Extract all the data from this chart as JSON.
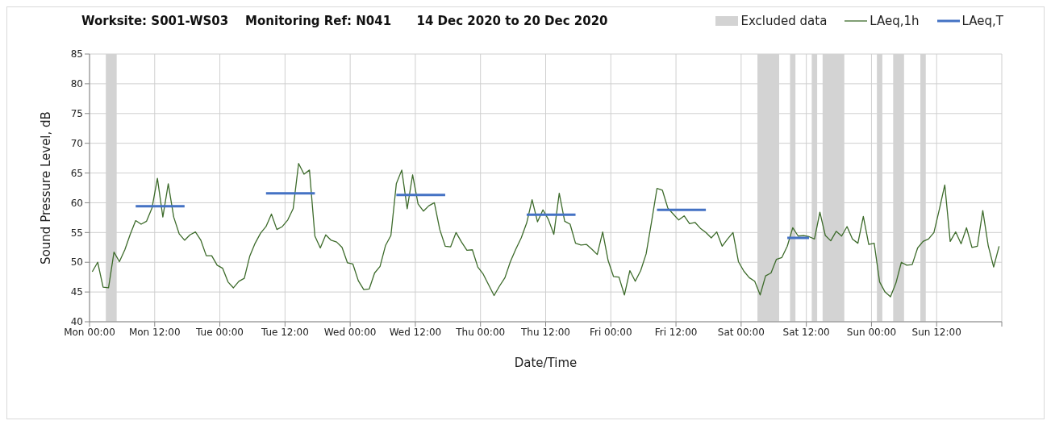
{
  "chart_data": {
    "type": "line",
    "title": "Worksite: S001-WS03    Monitoring Ref: N041      14 Dec 2020 to 20 Dec 2020",
    "xlabel": "Date/Time",
    "ylabel": "Sound Pressure Level, dB",
    "xlim": [
      "2020-12-14T00:00",
      "2020-12-21T00:00"
    ],
    "xticks": [
      {
        "value": "2020-12-14T00:00",
        "label": "Mon 00:00"
      },
      {
        "value": "2020-12-14T12:00",
        "label": "Mon 12:00"
      },
      {
        "value": "2020-12-15T00:00",
        "label": "Tue 00:00"
      },
      {
        "value": "2020-12-15T12:00",
        "label": "Tue 12:00"
      },
      {
        "value": "2020-12-16T00:00",
        "label": "Wed 00:00"
      },
      {
        "value": "2020-12-16T12:00",
        "label": "Wed 12:00"
      },
      {
        "value": "2020-12-17T00:00",
        "label": "Thu 00:00"
      },
      {
        "value": "2020-12-17T12:00",
        "label": "Thu 12:00"
      },
      {
        "value": "2020-12-18T00:00",
        "label": "Fri 00:00"
      },
      {
        "value": "2020-12-18T12:00",
        "label": "Fri 12:00"
      },
      {
        "value": "2020-12-19T00:00",
        "label": "Sat 00:00"
      },
      {
        "value": "2020-12-19T12:00",
        "label": "Sat 12:00"
      },
      {
        "value": "2020-12-20T00:00",
        "label": "Sun 00:00"
      },
      {
        "value": "2020-12-20T12:00",
        "label": "Sun 12:00"
      },
      {
        "value": "2020-12-21T00:00",
        "label": null
      }
    ],
    "ylim": [
      40,
      85
    ],
    "yticks": [
      40,
      45,
      50,
      55,
      60,
      65,
      70,
      75,
      80,
      85
    ],
    "grid": true,
    "legend": "top right",
    "marker": "none",
    "series": [
      {
        "name": "LAeq,1h",
        "color": "#3d6b2b",
        "x": [
          "2020-12-14T00:30",
          "2020-12-14T01:30",
          "2020-12-14T02:30",
          "2020-12-14T03:30",
          "2020-12-14T04:30",
          "2020-12-14T05:30",
          "2020-12-14T06:30",
          "2020-12-14T07:30",
          "2020-12-14T08:30",
          "2020-12-14T09:30",
          "2020-12-14T10:30",
          "2020-12-14T11:30",
          "2020-12-14T12:30",
          "2020-12-14T13:30",
          "2020-12-14T14:30",
          "2020-12-14T15:30",
          "2020-12-14T16:30",
          "2020-12-14T17:30",
          "2020-12-14T18:30",
          "2020-12-14T19:30",
          "2020-12-14T20:30",
          "2020-12-14T21:30",
          "2020-12-14T22:30",
          "2020-12-14T23:30",
          "2020-12-15T00:30",
          "2020-12-15T01:30",
          "2020-12-15T02:30",
          "2020-12-15T03:30",
          "2020-12-15T04:30",
          "2020-12-15T05:30",
          "2020-12-15T06:30",
          "2020-12-15T07:30",
          "2020-12-15T08:30",
          "2020-12-15T09:30",
          "2020-12-15T10:30",
          "2020-12-15T11:30",
          "2020-12-15T12:30",
          "2020-12-15T13:30",
          "2020-12-15T14:30",
          "2020-12-15T15:30",
          "2020-12-15T16:30",
          "2020-12-15T17:30",
          "2020-12-15T18:30",
          "2020-12-15T19:30",
          "2020-12-15T20:30",
          "2020-12-15T21:30",
          "2020-12-15T22:30",
          "2020-12-15T23:30",
          "2020-12-16T00:30",
          "2020-12-16T01:30",
          "2020-12-16T02:30",
          "2020-12-16T03:30",
          "2020-12-16T04:30",
          "2020-12-16T05:30",
          "2020-12-16T06:30",
          "2020-12-16T07:30",
          "2020-12-16T08:30",
          "2020-12-16T09:30",
          "2020-12-16T10:30",
          "2020-12-16T11:30",
          "2020-12-16T12:30",
          "2020-12-16T13:30",
          "2020-12-16T14:30",
          "2020-12-16T15:30",
          "2020-12-16T16:30",
          "2020-12-16T17:30",
          "2020-12-16T18:30",
          "2020-12-16T19:30",
          "2020-12-16T20:30",
          "2020-12-16T21:30",
          "2020-12-16T22:30",
          "2020-12-16T23:30",
          "2020-12-17T00:30",
          "2020-12-17T01:30",
          "2020-12-17T02:30",
          "2020-12-17T03:30",
          "2020-12-17T04:30",
          "2020-12-17T05:30",
          "2020-12-17T06:30",
          "2020-12-17T07:30",
          "2020-12-17T08:30",
          "2020-12-17T09:30",
          "2020-12-17T10:30",
          "2020-12-17T11:30",
          "2020-12-17T12:30",
          "2020-12-17T13:30",
          "2020-12-17T14:30",
          "2020-12-17T15:30",
          "2020-12-17T16:30",
          "2020-12-17T17:30",
          "2020-12-17T18:30",
          "2020-12-17T19:30",
          "2020-12-17T20:30",
          "2020-12-17T21:30",
          "2020-12-17T22:30",
          "2020-12-17T23:30",
          "2020-12-18T00:30",
          "2020-12-18T01:30",
          "2020-12-18T02:30",
          "2020-12-18T03:30",
          "2020-12-18T04:30",
          "2020-12-18T05:30",
          "2020-12-18T06:30",
          "2020-12-18T07:30",
          "2020-12-18T08:30",
          "2020-12-18T09:30",
          "2020-12-18T10:30",
          "2020-12-18T11:30",
          "2020-12-18T12:30",
          "2020-12-18T13:30",
          "2020-12-18T14:30",
          "2020-12-18T15:30",
          "2020-12-18T16:30",
          "2020-12-18T17:30",
          "2020-12-18T18:30",
          "2020-12-18T19:30",
          "2020-12-18T20:30",
          "2020-12-18T21:30",
          "2020-12-18T22:30",
          "2020-12-18T23:30",
          "2020-12-19T00:30",
          "2020-12-19T01:30",
          "2020-12-19T02:30",
          "2020-12-19T03:30",
          "2020-12-19T04:30",
          "2020-12-19T05:30",
          "2020-12-19T06:30",
          "2020-12-19T07:30",
          "2020-12-19T08:30",
          "2020-12-19T09:30",
          "2020-12-19T10:30",
          "2020-12-19T11:30",
          "2020-12-19T12:30",
          "2020-12-19T13:30",
          "2020-12-19T14:30",
          "2020-12-19T15:30",
          "2020-12-19T16:30",
          "2020-12-19T17:30",
          "2020-12-19T18:30",
          "2020-12-19T19:30",
          "2020-12-19T20:30",
          "2020-12-19T21:30",
          "2020-12-19T22:30",
          "2020-12-19T23:30",
          "2020-12-20T00:30",
          "2020-12-20T01:30",
          "2020-12-20T02:30",
          "2020-12-20T03:30",
          "2020-12-20T04:30",
          "2020-12-20T05:30",
          "2020-12-20T06:30",
          "2020-12-20T07:30",
          "2020-12-20T08:30",
          "2020-12-20T09:30",
          "2020-12-20T10:30",
          "2020-12-20T11:30",
          "2020-12-20T12:30",
          "2020-12-20T13:30",
          "2020-12-20T14:30",
          "2020-12-20T15:30",
          "2020-12-20T16:30",
          "2020-12-20T17:30",
          "2020-12-20T18:30",
          "2020-12-20T19:30",
          "2020-12-20T20:30",
          "2020-12-20T21:30",
          "2020-12-20T22:30",
          "2020-12-20T23:30"
        ],
        "values": [
          48.4,
          50.0,
          45.8,
          45.7,
          51.7,
          50.1,
          52.1,
          54.7,
          57.0,
          56.4,
          56.9,
          59.1,
          64.1,
          57.6,
          63.2,
          57.6,
          54.8,
          53.7,
          54.6,
          55.1,
          53.7,
          51.1,
          51.1,
          49.5,
          49.0,
          46.7,
          45.7,
          46.8,
          47.3,
          51.0,
          53.2,
          54.9,
          56.0,
          58.1,
          55.5,
          56.0,
          57.1,
          59.0,
          66.6,
          64.8,
          65.5,
          54.4,
          52.4,
          54.6,
          53.7,
          53.4,
          52.5,
          49.9,
          49.7,
          46.9,
          45.4,
          45.5,
          48.2,
          49.3,
          52.8,
          54.5,
          63.2,
          65.5,
          59.0,
          64.7,
          59.8,
          58.6,
          59.5,
          60.0,
          55.5,
          52.7,
          52.6,
          55.0,
          53.4,
          52.0,
          52.1,
          49.2,
          48.0,
          46.2,
          44.4,
          46.0,
          47.4,
          50.1,
          52.2,
          54.1,
          56.6,
          60.5,
          56.8,
          58.8,
          57.2,
          54.7,
          61.6,
          56.9,
          56.4,
          53.2,
          52.9,
          53.0,
          52.2,
          51.3,
          55.1,
          50.3,
          47.6,
          47.5,
          44.5,
          48.6,
          46.8,
          48.6,
          51.4,
          56.8,
          62.4,
          62.1,
          59.1,
          58.1,
          57.1,
          57.8,
          56.5,
          56.7,
          55.7,
          55.0,
          54.1,
          55.1,
          52.7,
          53.9,
          55.0,
          50.1,
          48.5,
          47.4,
          46.8,
          44.5,
          47.7,
          48.2,
          50.5,
          50.8,
          52.7,
          55.8,
          54.4,
          54.5,
          54.3,
          53.9,
          58.4,
          54.5,
          53.6,
          55.2,
          54.4,
          56.0,
          53.9,
          53.2,
          57.7,
          53.0,
          53.2,
          46.7,
          45.0,
          44.2,
          46.5,
          50.0,
          49.5,
          49.6,
          52.4,
          53.5,
          53.9,
          55.0,
          58.9,
          63.0,
          53.5,
          55.1,
          53.1,
          55.8,
          52.5,
          52.7,
          58.7,
          52.8,
          49.2,
          52.7
        ]
      },
      {
        "name": "LAeq,T",
        "color": "#4472c4",
        "x": [
          "2020-12-14T08:30",
          "2020-12-14T17:30",
          "2020-12-15T01:00",
          "2020-12-15T08:30",
          "2020-12-15T17:30",
          "2020-12-16T01:00",
          "2020-12-16T08:30",
          "2020-12-16T17:30",
          "2020-12-17T01:00",
          "2020-12-17T08:30",
          "2020-12-17T17:30",
          "2020-12-18T01:00",
          "2020-12-18T08:30",
          "2020-12-18T17:30",
          "2020-12-19T01:00",
          "2020-12-19T08:30",
          "2020-12-19T12:30"
        ],
        "values": [
          59.4,
          59.4,
          null,
          61.6,
          61.6,
          null,
          61.3,
          61.3,
          null,
          58.0,
          58.0,
          null,
          58.8,
          58.8,
          null,
          54.1,
          54.1
        ]
      }
    ],
    "bands": [
      {
        "axis": "x",
        "from": "2020-12-14T03:00",
        "to": "2020-12-14T05:00",
        "label": "Excluded data",
        "color": "#d3d3d3"
      },
      {
        "axis": "x",
        "from": "2020-12-19T03:00",
        "to": "2020-12-19T07:00",
        "color": "#d3d3d3"
      },
      {
        "axis": "x",
        "from": "2020-12-19T09:00",
        "to": "2020-12-19T10:00",
        "color": "#d3d3d3"
      },
      {
        "axis": "x",
        "from": "2020-12-19T13:00",
        "to": "2020-12-19T14:00",
        "color": "#d3d3d3"
      },
      {
        "axis": "x",
        "from": "2020-12-19T15:00",
        "to": "2020-12-19T19:00",
        "color": "#d3d3d3"
      },
      {
        "axis": "x",
        "from": "2020-12-20T01:00",
        "to": "2020-12-20T02:00",
        "color": "#d3d3d3"
      },
      {
        "axis": "x",
        "from": "2020-12-20T04:00",
        "to": "2020-12-20T06:00",
        "color": "#d3d3d3"
      },
      {
        "axis": "x",
        "from": "2020-12-20T09:00",
        "to": "2020-12-20T10:00",
        "color": "#d3d3d3"
      }
    ]
  }
}
